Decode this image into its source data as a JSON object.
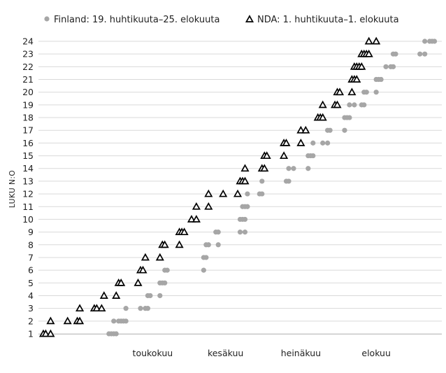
{
  "chart_data": {
    "type": "scatter",
    "ylabel": "LUKU N:O",
    "x_axis_ticks": [
      "toukokuu",
      "kesäkuu",
      "heinäkuu",
      "elokuu"
    ],
    "ylim": [
      1,
      24
    ],
    "y_ticks": [
      1,
      2,
      3,
      4,
      5,
      6,
      7,
      8,
      9,
      10,
      11,
      12,
      13,
      14,
      15,
      16,
      17,
      18,
      19,
      20,
      21,
      22,
      23,
      24
    ],
    "grid": "horizontal",
    "legend_position": "top",
    "series": [
      {
        "name": "Finland: 19. huhtikuuta–25. elokuuta",
        "color": "#a6a6a6",
        "marker": "circle",
        "points": [
          [
            "2012-04-28",
            1
          ],
          [
            "2012-04-29",
            1
          ],
          [
            "2012-04-30",
            1
          ],
          [
            "2012-05-01",
            1
          ],
          [
            "2012-04-30",
            2
          ],
          [
            "2012-05-02",
            2
          ],
          [
            "2012-05-03",
            2
          ],
          [
            "2012-05-04",
            2
          ],
          [
            "2012-05-05",
            2
          ],
          [
            "2012-05-05",
            3
          ],
          [
            "2012-05-11",
            3
          ],
          [
            "2012-05-13",
            3
          ],
          [
            "2012-05-14",
            3
          ],
          [
            "2012-05-14",
            4
          ],
          [
            "2012-05-15",
            4
          ],
          [
            "2012-05-19",
            4
          ],
          [
            "2012-05-19",
            5
          ],
          [
            "2012-05-20",
            5
          ],
          [
            "2012-05-21",
            5
          ],
          [
            "2012-05-21",
            6
          ],
          [
            "2012-05-22",
            6
          ],
          [
            "2012-06-06",
            6
          ],
          [
            "2012-06-06",
            7
          ],
          [
            "2012-06-07",
            7
          ],
          [
            "2012-06-07",
            8
          ],
          [
            "2012-06-08",
            8
          ],
          [
            "2012-06-12",
            8
          ],
          [
            "2012-06-11",
            9
          ],
          [
            "2012-06-12",
            9
          ],
          [
            "2012-06-21",
            9
          ],
          [
            "2012-06-23",
            9
          ],
          [
            "2012-06-21",
            10
          ],
          [
            "2012-06-22",
            10
          ],
          [
            "2012-06-23",
            10
          ],
          [
            "2012-06-22",
            11
          ],
          [
            "2012-06-23",
            11
          ],
          [
            "2012-06-24",
            11
          ],
          [
            "2012-06-24",
            12
          ],
          [
            "2012-06-29",
            12
          ],
          [
            "2012-06-30",
            12
          ],
          [
            "2012-06-30",
            13
          ],
          [
            "2012-07-10",
            13
          ],
          [
            "2012-07-11",
            13
          ],
          [
            "2012-07-11",
            14
          ],
          [
            "2012-07-13",
            14
          ],
          [
            "2012-07-19",
            14
          ],
          [
            "2012-07-19",
            15
          ],
          [
            "2012-07-20",
            15
          ],
          [
            "2012-07-21",
            15
          ],
          [
            "2012-07-21",
            16
          ],
          [
            "2012-07-25",
            16
          ],
          [
            "2012-07-27",
            16
          ],
          [
            "2012-07-27",
            17
          ],
          [
            "2012-07-28",
            17
          ],
          [
            "2012-08-03",
            17
          ],
          [
            "2012-08-03",
            18
          ],
          [
            "2012-08-04",
            18
          ],
          [
            "2012-08-05",
            18
          ],
          [
            "2012-08-05",
            19
          ],
          [
            "2012-08-07",
            19
          ],
          [
            "2012-08-10",
            19
          ],
          [
            "2012-08-11",
            19
          ],
          [
            "2012-08-11",
            20
          ],
          [
            "2012-08-12",
            20
          ],
          [
            "2012-08-16",
            20
          ],
          [
            "2012-08-16",
            21
          ],
          [
            "2012-08-17",
            21
          ],
          [
            "2012-08-18",
            21
          ],
          [
            "2012-08-20",
            22
          ],
          [
            "2012-08-22",
            22
          ],
          [
            "2012-08-23",
            22
          ],
          [
            "2012-08-23",
            23
          ],
          [
            "2012-08-24",
            23
          ],
          [
            "2012-09-03",
            23
          ],
          [
            "2012-09-05",
            23
          ],
          [
            "2012-09-05",
            24
          ],
          [
            "2012-09-07",
            24
          ],
          [
            "2012-09-08",
            24
          ],
          [
            "2012-09-09",
            24
          ]
        ]
      },
      {
        "name": "NDA: 1. huhtikuuta–1. elokuuta",
        "color": "#000000",
        "marker": "triangle",
        "points": [
          [
            "2012-04-01",
            1
          ],
          [
            "2012-04-02",
            1
          ],
          [
            "2012-04-04",
            1
          ],
          [
            "2012-04-04",
            2
          ],
          [
            "2012-04-11",
            2
          ],
          [
            "2012-04-15",
            2
          ],
          [
            "2012-04-16",
            2
          ],
          [
            "2012-04-16",
            3
          ],
          [
            "2012-04-22",
            3
          ],
          [
            "2012-04-23",
            3
          ],
          [
            "2012-04-25",
            3
          ],
          [
            "2012-04-26",
            4
          ],
          [
            "2012-05-01",
            4
          ],
          [
            "2012-05-02",
            5
          ],
          [
            "2012-05-03",
            5
          ],
          [
            "2012-05-10",
            5
          ],
          [
            "2012-05-11",
            6
          ],
          [
            "2012-05-12",
            6
          ],
          [
            "2012-05-13",
            7
          ],
          [
            "2012-05-19",
            7
          ],
          [
            "2012-05-20",
            8
          ],
          [
            "2012-05-21",
            8
          ],
          [
            "2012-05-27",
            8
          ],
          [
            "2012-05-27",
            9
          ],
          [
            "2012-05-28",
            9
          ],
          [
            "2012-05-29",
            9
          ],
          [
            "2012-06-01",
            10
          ],
          [
            "2012-06-03",
            10
          ],
          [
            "2012-06-03",
            11
          ],
          [
            "2012-06-08",
            11
          ],
          [
            "2012-06-08",
            12
          ],
          [
            "2012-06-14",
            12
          ],
          [
            "2012-06-20",
            12
          ],
          [
            "2012-06-21",
            13
          ],
          [
            "2012-06-22",
            13
          ],
          [
            "2012-06-23",
            13
          ],
          [
            "2012-06-23",
            14
          ],
          [
            "2012-06-30",
            14
          ],
          [
            "2012-07-01",
            14
          ],
          [
            "2012-07-01",
            15
          ],
          [
            "2012-07-02",
            15
          ],
          [
            "2012-07-09",
            15
          ],
          [
            "2012-07-09",
            16
          ],
          [
            "2012-07-10",
            16
          ],
          [
            "2012-07-16",
            16
          ],
          [
            "2012-07-16",
            17
          ],
          [
            "2012-07-18",
            17
          ],
          [
            "2012-07-23",
            18
          ],
          [
            "2012-07-24",
            18
          ],
          [
            "2012-07-25",
            18
          ],
          [
            "2012-07-25",
            19
          ],
          [
            "2012-07-30",
            19
          ],
          [
            "2012-07-31",
            19
          ],
          [
            "2012-07-31",
            20
          ],
          [
            "2012-08-01",
            20
          ],
          [
            "2012-08-06",
            20
          ],
          [
            "2012-08-06",
            21
          ],
          [
            "2012-08-07",
            21
          ],
          [
            "2012-08-08",
            21
          ],
          [
            "2012-08-07",
            22
          ],
          [
            "2012-08-08",
            22
          ],
          [
            "2012-08-09",
            22
          ],
          [
            "2012-08-10",
            22
          ],
          [
            "2012-08-10",
            23
          ],
          [
            "2012-08-11",
            23
          ],
          [
            "2012-08-12",
            23
          ],
          [
            "2012-08-13",
            23
          ],
          [
            "2012-08-13",
            24
          ],
          [
            "2012-08-16",
            24
          ]
        ]
      }
    ]
  }
}
